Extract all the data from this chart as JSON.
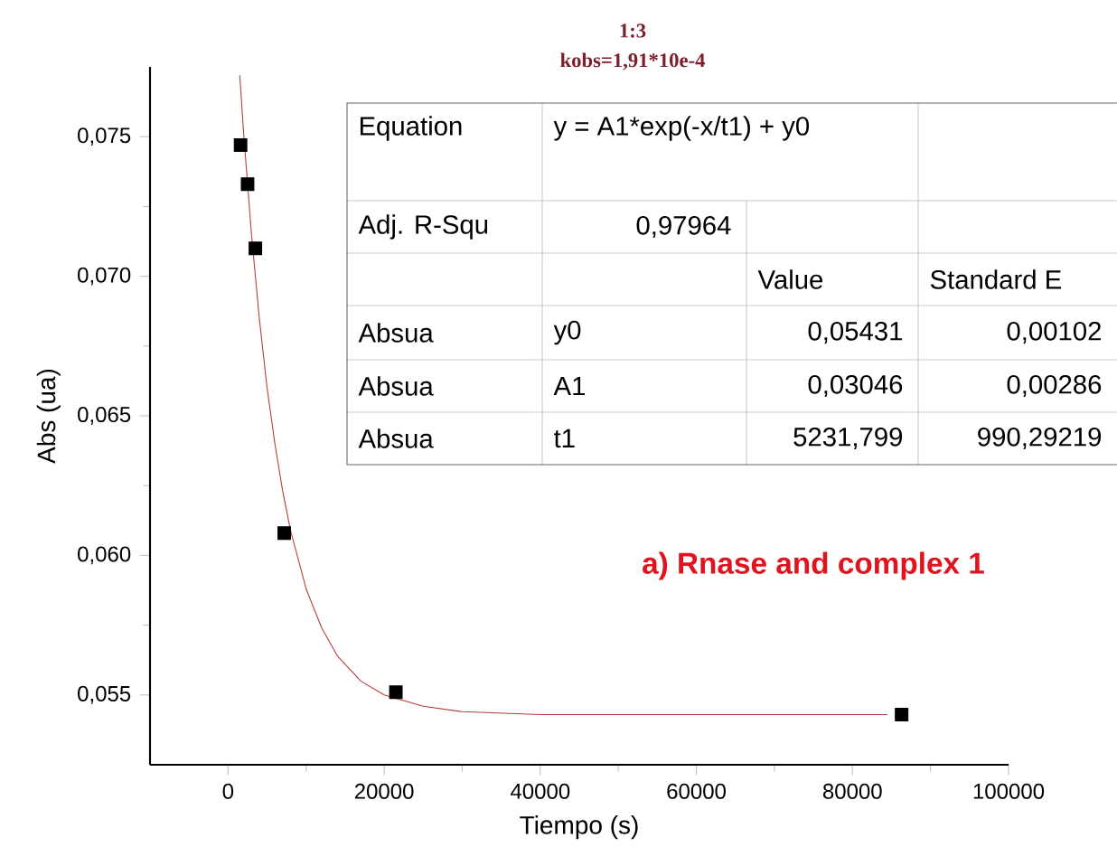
{
  "chart_data": {
    "type": "scatter",
    "title": "1:3",
    "subtitle": "kobs=1,91*10e-4",
    "xlabel": "Tiempo (s)",
    "ylabel": "Abs (ua)",
    "xlim": [
      -10000,
      100000
    ],
    "xticks": [
      0,
      20000,
      40000,
      60000,
      80000,
      100000
    ],
    "ylim": [
      0.0525,
      0.0775
    ],
    "yticks": [
      {
        "value": 0.055,
        "label": "0,055"
      },
      {
        "value": 0.06,
        "label": "0,060"
      },
      {
        "value": 0.065,
        "label": "0,065"
      },
      {
        "value": 0.07,
        "label": "0,070"
      },
      {
        "value": 0.075,
        "label": "0,075"
      }
    ],
    "series": [
      {
        "color": "#000000",
        "marker": "square",
        "x": [
          1600,
          2500,
          3500,
          7200,
          21500,
          86300
        ],
        "values": [
          0.0747,
          0.0733,
          0.071,
          0.0608,
          0.0551,
          0.0543
        ]
      },
      {
        "type": "line",
        "color": "#b83a3a",
        "marker": "none",
        "x": [
          1500,
          2000,
          3000,
          4000,
          5000,
          6000,
          7000,
          8000,
          10000,
          12000,
          14000,
          17000,
          20000,
          25000,
          30000,
          40000,
          60000,
          84500
        ],
        "values": [
          0.0772,
          0.0751,
          0.0715,
          0.0685,
          0.066,
          0.064,
          0.0623,
          0.0609,
          0.0588,
          0.0574,
          0.0564,
          0.0555,
          0.055,
          0.0546,
          0.0544,
          0.0543,
          0.0543,
          0.0543
        ]
      }
    ],
    "annotations": [
      "Equation",
      "y = A1*exp(-x/t1) + y0",
      "Adj. R-Squ",
      "0,97964",
      "Value",
      "Standard E",
      "Absua",
      "y0",
      "0,05431",
      "0,00102",
      "Absua",
      "A1",
      "0,03046",
      "0,00286",
      "Absua",
      "t1",
      "5231,799",
      "990,29219",
      "a) Rnase and complex 1"
    ]
  }
}
